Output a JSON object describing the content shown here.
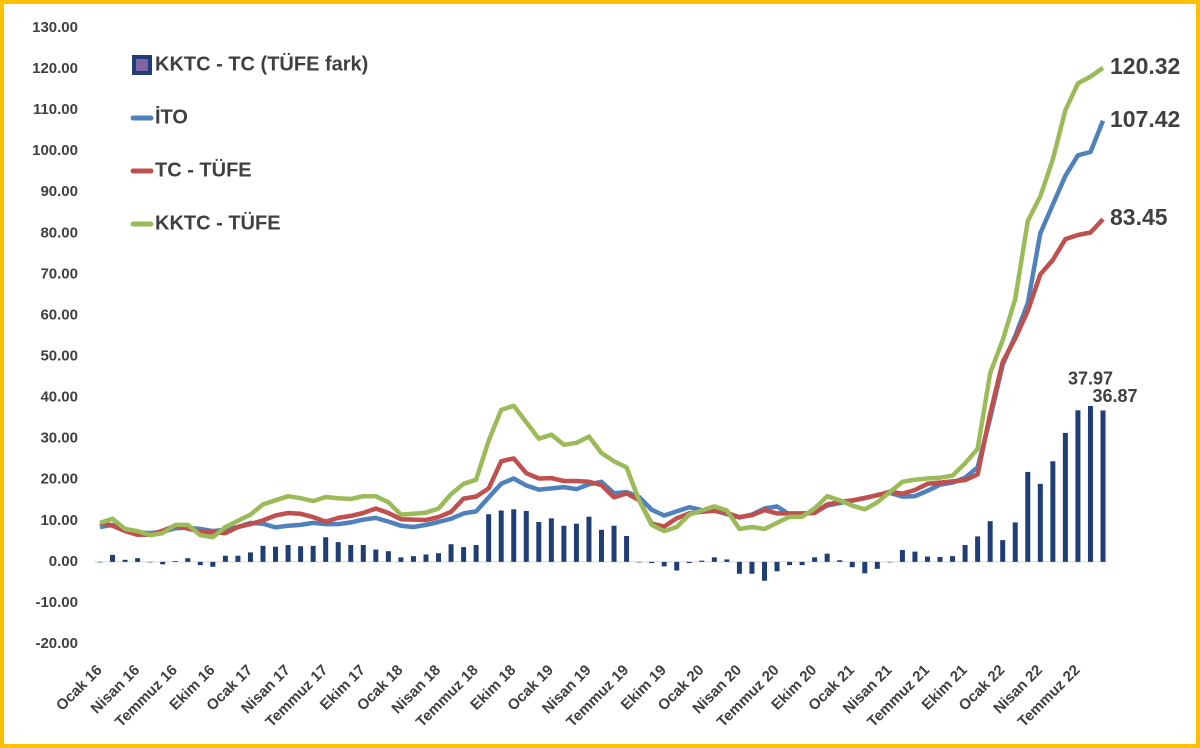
{
  "chart_data": {
    "type": "combo",
    "categories": [
      "Ocak 16",
      null,
      null,
      "Nisan 16",
      null,
      null,
      "Temmuz 16",
      null,
      null,
      "Ekim 16",
      null,
      null,
      "Ocak 17",
      null,
      null,
      "Nisan 17",
      null,
      null,
      "Temmuz 17",
      null,
      null,
      "Ekim 17",
      null,
      null,
      "Ocak 18",
      null,
      null,
      "Nisan 18",
      null,
      null,
      "Temmuz 18",
      null,
      null,
      "Ekim 18",
      null,
      null,
      "Ocak 19",
      null,
      null,
      "Nisan 19",
      null,
      null,
      "Temmuz 19",
      null,
      null,
      "Ekim 19",
      null,
      null,
      "Ocak 20",
      null,
      null,
      "Nisan 20",
      null,
      null,
      "Temmuz 20",
      null,
      null,
      "Ekim 20",
      null,
      null,
      "Ocak 21",
      null,
      null,
      "Nisan 21",
      null,
      null,
      "Temmuz 21",
      null,
      null,
      "Ekim 21",
      null,
      null,
      "Ocak 22",
      null,
      null,
      "Nisan 22",
      null,
      null,
      "Temmuz 22",
      null,
      null
    ],
    "series": [
      {
        "name": "KKTC - TC (TÜFE fark)",
        "type": "bar",
        "color": "#1f3e76",
        "values": [
          -0.1,
          1.7,
          0.5,
          0.9,
          -0.1,
          -0.6,
          0.2,
          0.9,
          -0.8,
          -1.2,
          1.5,
          1.5,
          2.3,
          3.9,
          3.7,
          4.1,
          3.8,
          3.9,
          6.0,
          4.8,
          4.1,
          4.1,
          3.0,
          2.6,
          1.1,
          1.4,
          1.8,
          2.1,
          4.3,
          3.6,
          4.1,
          11.6,
          12.5,
          12.8,
          12.4,
          9.7,
          10.6,
          8.8,
          9.3,
          11.0,
          7.8,
          8.8,
          6.3,
          0.0,
          -0.3,
          -1.1,
          -2.1,
          -0.3,
          0.3,
          1.1,
          0.6,
          -2.9,
          -2.9,
          -4.6,
          -2.3,
          -0.8,
          -0.8,
          1.1,
          2.0,
          0.4,
          -1.3,
          -2.8,
          -1.7,
          -0.1,
          2.9,
          2.5,
          1.3,
          1.2,
          1.4,
          4.1,
          6.2,
          9.9,
          5.3,
          9.6,
          21.9,
          19.0,
          24.5,
          31.4,
          36.9,
          37.97,
          36.87
        ]
      },
      {
        "name": "İTO",
        "type": "line",
        "color": "#4f81bd",
        "values": [
          8.5,
          9,
          8,
          7.2,
          7,
          7.3,
          8.2,
          8.3,
          8,
          7.5,
          7.8,
          8.5,
          9.5,
          9.3,
          8.4,
          8.8,
          9,
          9.5,
          9.2,
          9.2,
          9.6,
          10.3,
          10.7,
          9.8,
          8.8,
          8.5,
          9,
          9.7,
          10.5,
          11.8,
          12.3,
          15.7,
          19,
          20.3,
          18.6,
          17.6,
          17.9,
          18.2,
          17.7,
          18.9,
          19.5,
          16.7,
          17,
          15.8,
          12.7,
          11.3,
          12.3,
          13.3,
          12.6,
          12.5,
          11.6,
          10.8,
          11.5,
          13,
          13.5,
          11.5,
          11.7,
          12,
          13.7,
          14.3,
          14.9,
          15.5,
          16.3,
          16.8,
          15.9,
          16,
          17.3,
          18.8,
          19.3,
          20.5,
          23,
          35,
          48,
          55,
          63,
          80,
          87,
          94,
          99,
          99.8,
          107.42
        ]
      },
      {
        "name": "TC - TÜFE",
        "type": "line",
        "color": "#c0504d",
        "values": [
          9.6,
          8.8,
          7.5,
          6.6,
          6.6,
          7.6,
          8.8,
          8.1,
          7.3,
          7.2,
          7,
          8.5,
          9.2,
          10.1,
          11.3,
          11.9,
          11.7,
          10.9,
          9.8,
          10.7,
          11.2,
          11.9,
          13,
          11.9,
          10.4,
          10.3,
          10.2,
          10.9,
          12.2,
          15.4,
          15.9,
          17.9,
          24.5,
          25.2,
          21.6,
          20.3,
          20.4,
          19.7,
          19.7,
          19.5,
          18.7,
          15.7,
          16.7,
          15,
          9.3,
          8.6,
          10.6,
          11.8,
          12.2,
          12.4,
          11.9,
          10.9,
          11.4,
          12.6,
          11.8,
          11.8,
          11.8,
          11.9,
          14,
          14.6,
          15,
          15.6,
          16.2,
          17.1,
          16.6,
          17.5,
          19,
          19.3,
          19.6,
          19.9,
          21.3,
          36.1,
          48.7,
          54.4,
          61.1,
          70,
          73.5,
          78.6,
          79.6,
          80.2,
          83.45
        ]
      },
      {
        "name": "KKTC - TÜFE",
        "type": "line",
        "color": "#9bbb59",
        "values": [
          9.5,
          10.5,
          8,
          7.5,
          6.5,
          7,
          9,
          9,
          6.5,
          6,
          8.5,
          10,
          11.5,
          14,
          15,
          16,
          15.5,
          14.8,
          15.8,
          15.5,
          15.3,
          16,
          16,
          14.5,
          11.5,
          11.7,
          12,
          13,
          16.5,
          19,
          20,
          29.5,
          37,
          38,
          34,
          30,
          31,
          28.5,
          29,
          30.5,
          26.5,
          24.5,
          23,
          15,
          9,
          7.5,
          8.5,
          11.5,
          12.5,
          13.5,
          12.5,
          8,
          8.5,
          8,
          9.5,
          11,
          11,
          13,
          16,
          15,
          13.7,
          12.8,
          14.5,
          17,
          19.5,
          20,
          20.3,
          20.5,
          21,
          24,
          27.5,
          46,
          54,
          64,
          83,
          89,
          98,
          110,
          116.5,
          118.17,
          120.32
        ]
      }
    ],
    "ylim": [
      -20,
      130
    ],
    "yticks": [
      {
        "value": -20,
        "label": "-20.00"
      },
      {
        "value": -10,
        "label": "-10.00"
      },
      {
        "value": 0,
        "label": "0.00"
      },
      {
        "value": 10,
        "label": "10.00"
      },
      {
        "value": 20,
        "label": "20.00"
      },
      {
        "value": 30,
        "label": "30.00"
      },
      {
        "value": 40,
        "label": "40.00"
      },
      {
        "value": 50,
        "label": "50.00"
      },
      {
        "value": 60,
        "label": "60.00"
      },
      {
        "value": 70,
        "label": "70.00"
      },
      {
        "value": 80,
        "label": "80.00"
      },
      {
        "value": 90,
        "label": "90.00"
      },
      {
        "value": 100,
        "label": "100.00"
      },
      {
        "value": 110,
        "label": "110.00"
      },
      {
        "value": 120,
        "label": "120.00"
      },
      {
        "value": 130,
        "label": "130.00"
      }
    ],
    "grid": false,
    "legend": "top-left"
  }
}
